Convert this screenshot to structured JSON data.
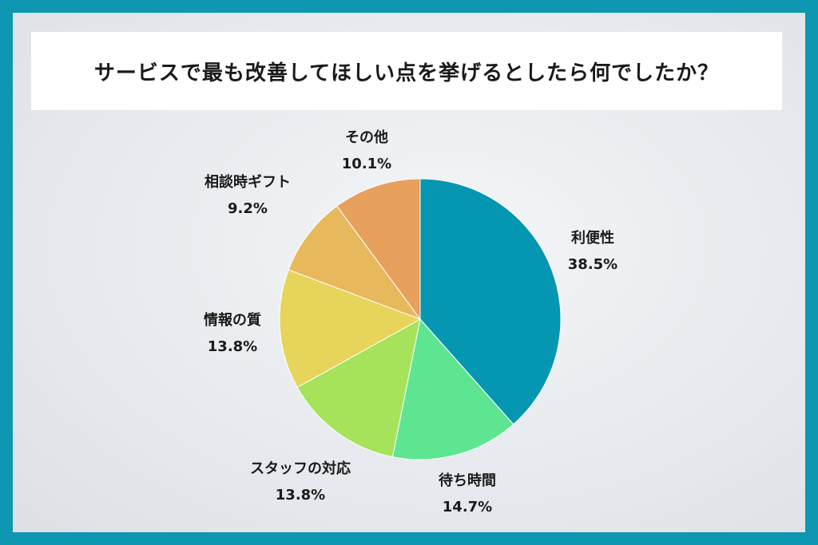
{
  "chart_data": {
    "type": "pie",
    "title": "サービスで最も改善してほしい点を挙げるとしたら何でしたか？",
    "slices": [
      {
        "label": "利便性",
        "value": 38.5,
        "value_label": "38.5%",
        "color": "#0596b1"
      },
      {
        "label": "待ち時間",
        "value": 14.7,
        "value_label": "14.7%",
        "color": "#5de592"
      },
      {
        "label": "スタッフの対応",
        "value": 13.8,
        "value_label": "13.8%",
        "color": "#a6e35b"
      },
      {
        "label": "情報の質",
        "value": 13.8,
        "value_label": "13.8%",
        "color": "#e6d45b"
      },
      {
        "label": "相談時ギフト",
        "value": 9.2,
        "value_label": "9.2%",
        "color": "#e8b95c"
      },
      {
        "label": "その他",
        "value": 10.1,
        "value_label": "10.1%",
        "color": "#e8a05d"
      }
    ],
    "start_angle": "12 o'clock",
    "direction": "clockwise",
    "legend": "none"
  }
}
